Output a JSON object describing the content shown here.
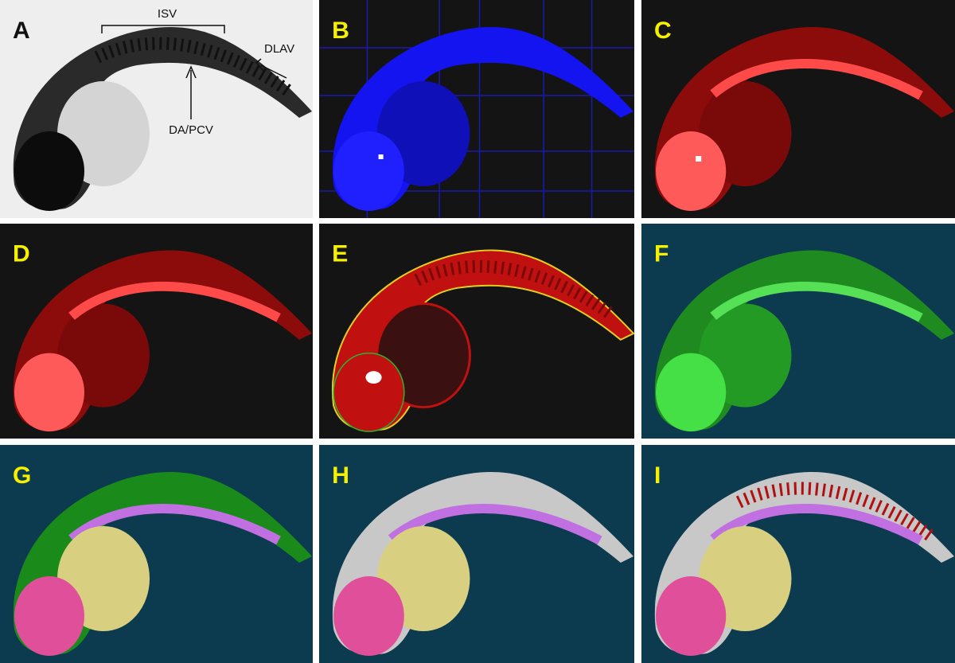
{
  "panels": [
    {
      "label": "A",
      "annotations": [
        "ISV",
        "DLAV",
        "DA/PCV"
      ]
    },
    {
      "label": "B"
    },
    {
      "label": "C"
    },
    {
      "label": "D"
    },
    {
      "label": "E"
    },
    {
      "label": "F"
    },
    {
      "label": "G"
    },
    {
      "label": "H"
    },
    {
      "label": "I"
    }
  ]
}
